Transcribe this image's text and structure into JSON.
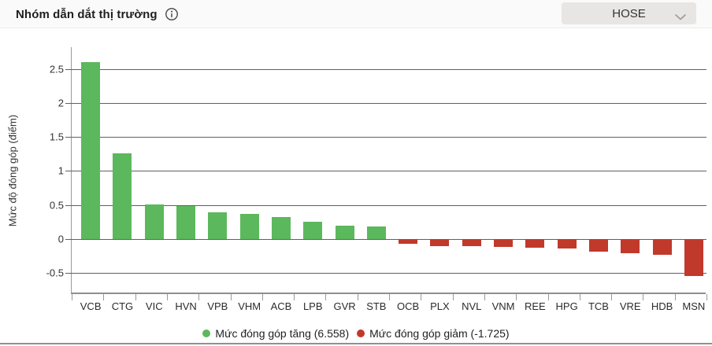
{
  "header": {
    "title": "Nhóm dẫn dắt thị trường",
    "exchange_selector": {
      "value": "HOSE"
    }
  },
  "chart_data": {
    "type": "bar",
    "title": "Nhóm dẫn dắt thị trường",
    "xlabel": "",
    "ylabel": "Mức độ đóng góp (điểm)",
    "categories": [
      "VCB",
      "CTG",
      "VIC",
      "HVN",
      "VPB",
      "VHM",
      "ACB",
      "LPB",
      "GVR",
      "STB",
      "OCB",
      "PLX",
      "NVL",
      "VNM",
      "REE",
      "HPG",
      "TCB",
      "VRE",
      "HDB",
      "MSN"
    ],
    "values": [
      2.598,
      1.255,
      0.505,
      0.482,
      0.392,
      0.368,
      0.326,
      0.248,
      0.2,
      0.184,
      -0.055,
      -0.095,
      -0.098,
      -0.105,
      -0.115,
      -0.125,
      -0.175,
      -0.195,
      -0.225,
      -0.537
    ],
    "yticks": [
      2.5,
      2,
      1.5,
      1,
      0.5,
      0,
      -0.5
    ],
    "ylim": [
      -0.81,
      2.82
    ],
    "grid": "horizontal",
    "legend_position": "bottom",
    "colors": {
      "up": "#5cb85c",
      "down": "#c0392b"
    },
    "legend": {
      "items": [
        {
          "label": "Mức đóng góp tăng (6.558)",
          "color": "#5cb85c",
          "direction": "up"
        },
        {
          "label": "Mức đóng góp giảm (-1.725)",
          "color": "#c0392b",
          "direction": "down"
        }
      ]
    }
  }
}
